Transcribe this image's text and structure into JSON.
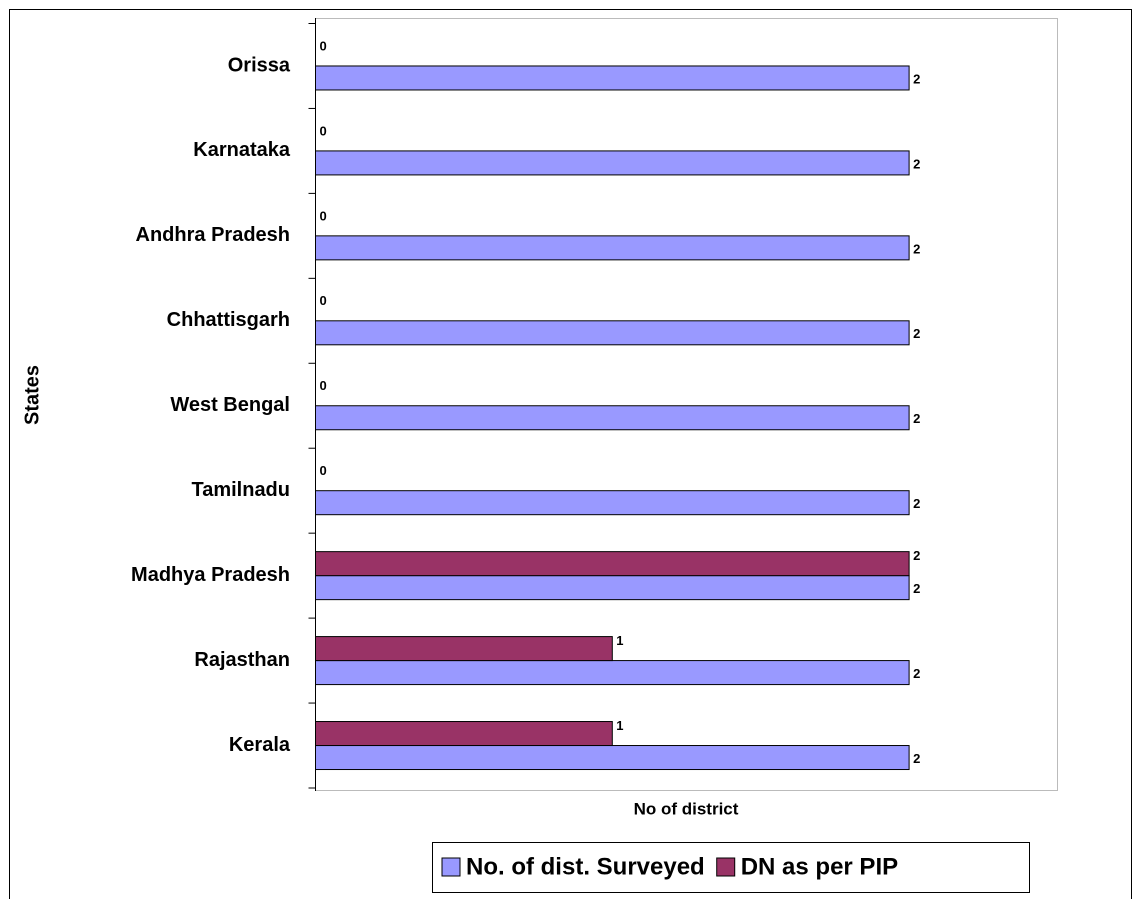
{
  "chart_data": {
    "type": "barh",
    "categories": [
      "Kerala",
      "Rajasthan",
      "Madhya Pradesh",
      "Tamilnadu",
      "West Bengal",
      "Chhattisgarh",
      "Andhra Pradesh",
      "Karnataka",
      "Orissa"
    ],
    "series": [
      {
        "name": "No. of dist. Surveyed",
        "color": "#9999ff",
        "values": [
          2,
          2,
          2,
          2,
          2,
          2,
          2,
          2,
          2
        ]
      },
      {
        "name": "DN as per PIP",
        "color": "#993366",
        "values": [
          1,
          1,
          2,
          0,
          0,
          0,
          0,
          0,
          0
        ]
      }
    ],
    "xlabel": "No of district",
    "ylabel": "States",
    "xlim": [
      0,
      2.5
    ],
    "legend": "bottom"
  }
}
